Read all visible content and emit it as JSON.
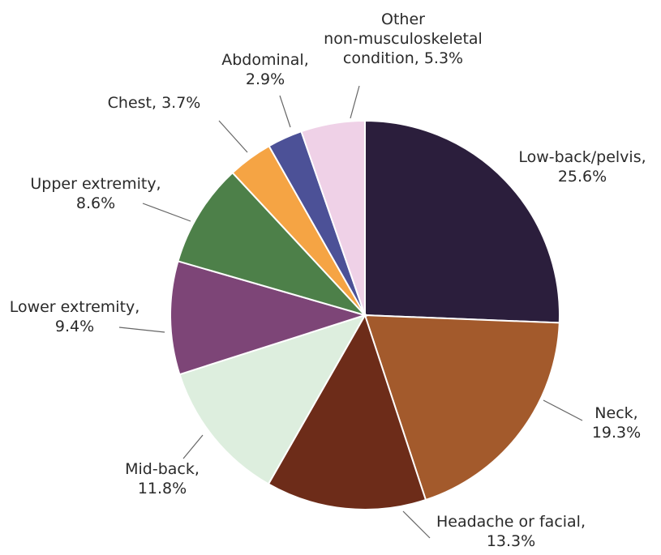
{
  "chart_data": {
    "type": "pie",
    "title": "",
    "start_angle_deg": 0,
    "direction": "clockwise",
    "slices": [
      {
        "label": "Low-back/pelvis",
        "value": 25.6,
        "value_label": "25.6%",
        "color": "#2b1e3c"
      },
      {
        "label": "Neck",
        "value": 19.3,
        "value_label": "19.3%",
        "color": "#a35a2c"
      },
      {
        "label": "Headache or facial",
        "value": 13.3,
        "value_label": "13.3%",
        "color": "#6d2c19"
      },
      {
        "label": "Mid-back",
        "value": 11.8,
        "value_label": "11.8%",
        "color": "#ddeede"
      },
      {
        "label": "Lower extremity",
        "value": 9.4,
        "value_label": "9.4%",
        "color": "#7d4577"
      },
      {
        "label": "Upper extremity",
        "value": 8.6,
        "value_label": "8.6%",
        "color": "#4d8049"
      },
      {
        "label": "Chest",
        "value": 3.7,
        "value_label": "3.7%",
        "color": "#f5a444"
      },
      {
        "label": "Abdominal",
        "value": 2.9,
        "value_label": "2.9%",
        "color": "#4c5197"
      },
      {
        "label": "Other non-musculoskeletal condition",
        "value": 5.3,
        "value_label": "5.3%",
        "color": "#efd1e7"
      }
    ]
  }
}
